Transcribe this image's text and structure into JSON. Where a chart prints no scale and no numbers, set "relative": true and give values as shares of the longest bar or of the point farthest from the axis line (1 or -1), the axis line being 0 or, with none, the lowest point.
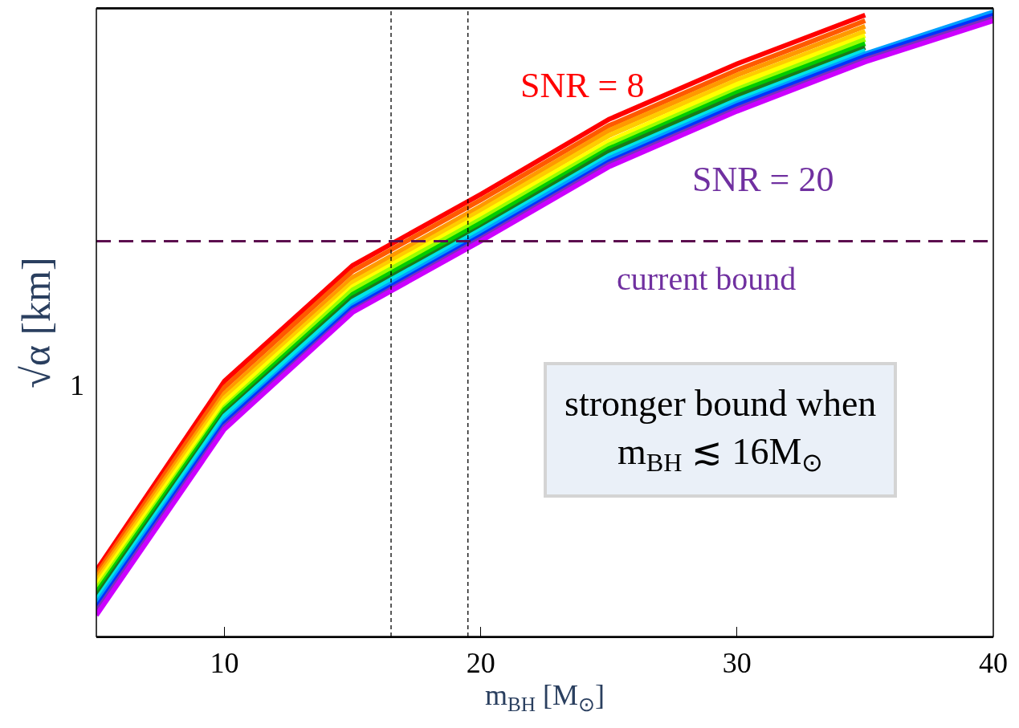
{
  "chart_data": {
    "type": "line",
    "relative": true,
    "xlabel": "m$_{BH}$ [M$_{⊙}$]",
    "ylabel": "√α [km]",
    "marker": "none",
    "line_style": "solid",
    "x": [
      5,
      10,
      15,
      20,
      25,
      30,
      35,
      40
    ],
    "xlim": [
      5,
      40
    ],
    "xticks": [
      10,
      20,
      30,
      40
    ],
    "series": [
      {
        "color": "#ff0000",
        "values": [
          0.106,
          0.409,
          0.594,
          0.708,
          0.828,
          0.917,
          0.995,
          null
        ]
      },
      {
        "color": "#ff5a00",
        "values": [
          0.1,
          0.399,
          0.585,
          0.699,
          0.818,
          0.907,
          0.986,
          null
        ]
      },
      {
        "color": "#ff9900",
        "values": [
          0.094,
          0.389,
          0.575,
          0.689,
          0.81,
          0.899,
          0.977,
          null
        ]
      },
      {
        "color": "#ffcc00",
        "values": [
          0.088,
          0.382,
          0.567,
          0.682,
          0.802,
          0.891,
          0.969,
          null
        ]
      },
      {
        "color": "#ffff00",
        "values": [
          0.082,
          0.375,
          0.56,
          0.675,
          0.793,
          0.884,
          0.962,
          null
        ]
      },
      {
        "color": "#99ff00",
        "values": [
          0.076,
          0.367,
          0.555,
          0.668,
          0.787,
          0.876,
          0.956,
          null
        ]
      },
      {
        "color": "#00cc00",
        "values": [
          0.07,
          0.363,
          0.548,
          0.662,
          0.781,
          0.871,
          0.949,
          null
        ]
      },
      {
        "color": "#1a7a1a",
        "values": [
          0.064,
          0.357,
          0.542,
          0.655,
          0.776,
          0.865,
          0.943,
          null
        ]
      },
      {
        "color": "#00e5e5",
        "values": [
          0.058,
          0.353,
          0.537,
          0.651,
          0.77,
          0.859,
          0.938,
          null
        ]
      },
      {
        "color": "#00a0ff",
        "values": [
          0.052,
          0.345,
          0.53,
          0.646,
          0.765,
          0.854,
          0.933,
          1.0
        ]
      },
      {
        "color": "#0033ff",
        "values": [
          0.046,
          0.341,
          0.526,
          0.641,
          0.76,
          0.85,
          0.929,
          0.995
        ]
      },
      {
        "color": "#7b2fbe",
        "values": [
          0.04,
          0.336,
          0.522,
          0.637,
          0.756,
          0.845,
          0.924,
          0.99
        ]
      },
      {
        "color": "#cc00ff",
        "values": [
          0.034,
          0.332,
          0.519,
          0.633,
          0.752,
          0.841,
          0.92,
          0.986
        ]
      }
    ],
    "ref_lines": [
      {
        "axis": "y",
        "value": 0.633,
        "label": "current bound",
        "color": "#5c0f4f",
        "line_style": "dashed"
      },
      {
        "axis": "x",
        "value": 16.5,
        "color": "#000000",
        "line_style": "dotted"
      },
      {
        "axis": "x",
        "value": 19.5,
        "color": "#000000",
        "line_style": "dotted"
      }
    ],
    "annotations": [
      "SNR = 8",
      "SNR = 20",
      "stronger bound when\nm$_{BH}$ ≲ 16M$_{⊙}$",
      "1"
    ]
  }
}
